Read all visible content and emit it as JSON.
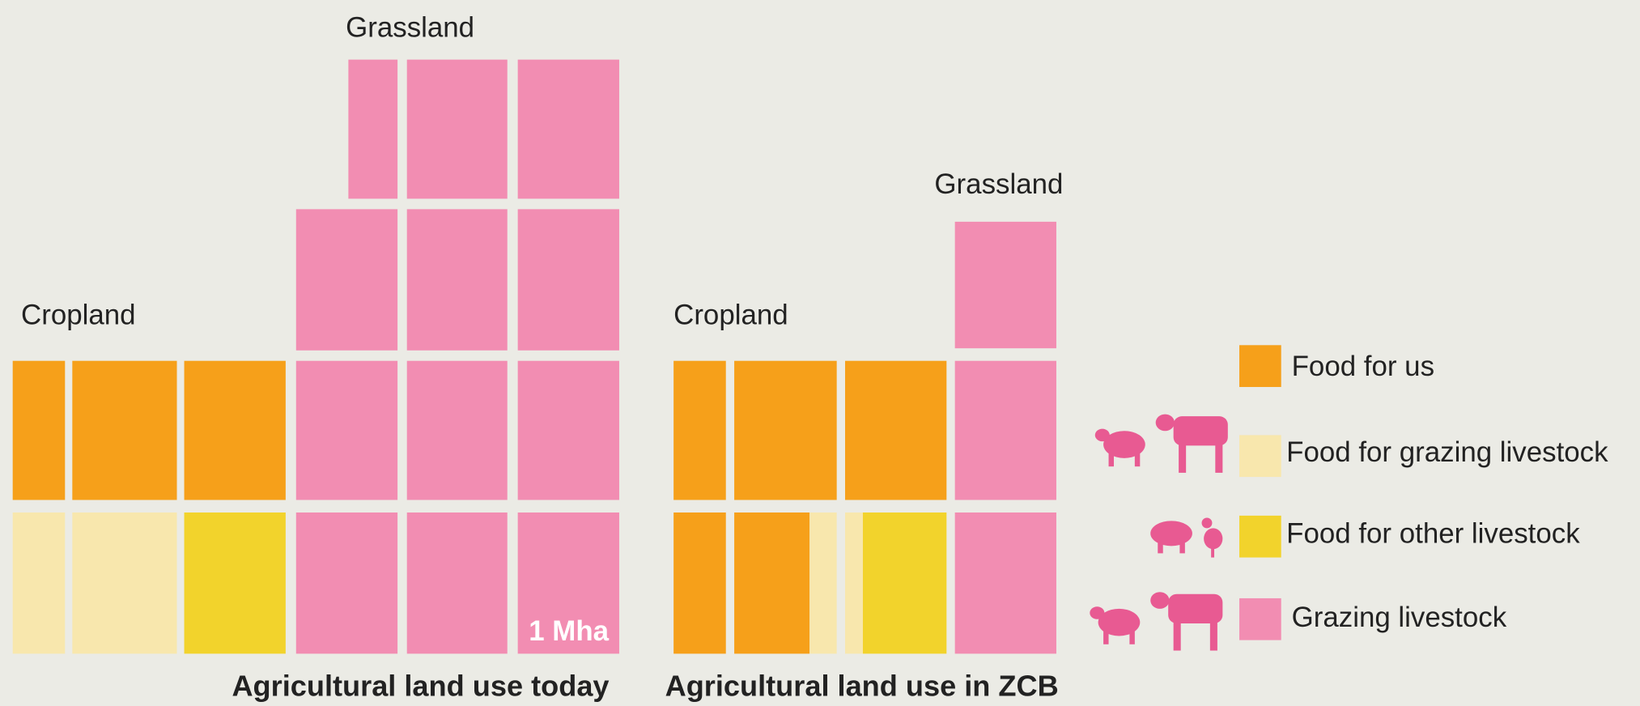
{
  "panels": [
    {
      "title": "Agricultural land use today",
      "cropland_label": "Cropland",
      "grassland_label": "Grassland",
      "unit_label": "1 Mha"
    },
    {
      "title": "Agricultural land use in ZCB",
      "cropland_label": "Cropland",
      "grassland_label": "Grassland"
    }
  ],
  "legend": [
    "Food for us",
    "Food for grazing livestock",
    "Food for other livestock",
    "Grazing livestock"
  ]
}
